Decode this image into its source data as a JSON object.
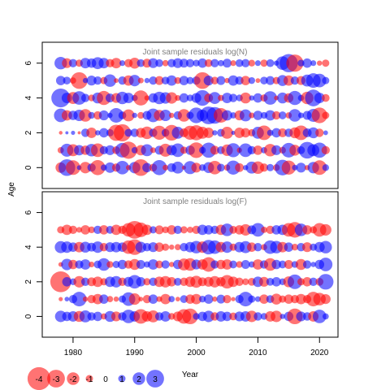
{
  "chart_data": {
    "type": "scatter",
    "description_kind": "bubble residual plot",
    "ylabel": "Age",
    "xlabel": "Year",
    "x_ticks": [
      "1980",
      "1990",
      "2000",
      "2010",
      "2020"
    ],
    "y_ticks": [
      "0",
      "2",
      "4",
      "6"
    ],
    "xlim": [
      1975,
      2023
    ],
    "ylim": [
      -1.2,
      7.2
    ],
    "years": [
      1978,
      1979,
      1980,
      1981,
      1982,
      1983,
      1984,
      1985,
      1986,
      1987,
      1988,
      1989,
      1990,
      1991,
      1992,
      1993,
      1994,
      1995,
      1996,
      1997,
      1998,
      1999,
      2000,
      2001,
      2002,
      2003,
      2004,
      2005,
      2006,
      2007,
      2008,
      2009,
      2010,
      2011,
      2012,
      2013,
      2014,
      2015,
      2016,
      2017,
      2018,
      2019,
      2020,
      2021
    ],
    "ages": [
      0,
      1,
      2,
      3,
      4,
      5,
      6
    ],
    "colors": {
      "negative": "#ff0000",
      "positive": "#0000ff"
    },
    "panels": [
      {
        "title": "Joint sample residuals log(N)",
        "residuals": [
          [
            -1.6,
            2.8,
            -2.4,
            0.5,
            -1.8,
            1.2,
            -2.5,
            0.8,
            1.6,
            -1.2,
            2.2,
            -0.6,
            1.8,
            -2.8,
            1.4,
            -1.1,
            2.5,
            -0.7,
            1.3,
            1.9,
            -0.4,
            2.1,
            -1.5,
            0.9,
            1.7,
            -2.2,
            1.1,
            -0.8,
            2.3,
            -1.3,
            0.6,
            1.9,
            -2.0,
            -1.2,
            1.0,
            -0.9,
            2.6,
            -2.3,
            0.7,
            1.5,
            -0.6,
            1.8,
            -2.4,
            0.9
          ],
          [
            -0.8,
            2.1,
            -1.9,
            1.6,
            -1.4,
            2.0,
            -2.2,
            1.2,
            1.5,
            -1.1,
            2.4,
            -2.9,
            0.8,
            -1.6,
            1.9,
            -0.7,
            1.3,
            -2.1,
            1.6,
            2.2,
            -1.0,
            1.4,
            -2.6,
            0.9,
            2.5,
            -1.3,
            1.1,
            -1.8,
            2.3,
            -0.6,
            2.2,
            1.2,
            -1.4,
            0.8,
            -2.0,
            1.5,
            -0.9,
            2.4,
            -1.7,
            1.1,
            2.8,
            1.9,
            2.5,
            -1.2
          ],
          [
            -0.3,
            0.2,
            0.4,
            -0.2,
            1.2,
            -1.6,
            0.6,
            1.4,
            1.0,
            -2.7,
            -2.9,
            1.1,
            1.2,
            -1.5,
            -2.0,
            1.2,
            -2.3,
            1.1,
            -2.6,
            1.9,
            -1.3,
            -2.3,
            -2.5,
            -1.9,
            -1.6,
            0.6,
            1.1,
            -1.9,
            0.4,
            -1.6,
            -1.4,
            -1.0,
            1.9,
            -2.4,
            0.8,
            1.4,
            -1.3,
            1.2,
            -1.7,
            -2.4,
            1.3,
            1.7,
            -1.2,
            0.5
          ],
          [
            2.2,
            -1.6,
            1.4,
            1.8,
            -2.0,
            0.9,
            -1.2,
            1.5,
            0.6,
            2.4,
            1.1,
            -1.9,
            0.6,
            -0.9,
            1.3,
            2.2,
            -1.7,
            1.8,
            -0.6,
            1.2,
            -2.0,
            1.0,
            2.6,
            1.8,
            3.0,
            2.8,
            -2.4,
            1.6,
            0.8,
            -1.5,
            1.9,
            -0.7,
            1.4,
            0.9,
            1.6,
            -1.2,
            1.1,
            -0.8,
            2.0,
            0.7,
            1.3,
            2.1,
            -2.6,
            -1.0
          ],
          [
            3.2,
            1.6,
            -1.9,
            2.2,
            1.2,
            -0.9,
            1.7,
            -2.3,
            1.3,
            -1.5,
            2.0,
            1.6,
            0.8,
            -2.5,
            -0.6,
            1.4,
            2.0,
            1.8,
            -1.8,
            -0.7,
            1.4,
            0.9,
            1.5,
            2.6,
            -1.3,
            1.9,
            -0.8,
            1.6,
            1.2,
            0.9,
            -1.7,
            0.6,
            1.4,
            -1.0,
            2.2,
            -0.5,
            1.7,
            -1.4,
            2.3,
            0.8,
            -2.0,
            2.8,
            1.6,
            -1.1
          ],
          [
            1.4,
            1.1,
            -0.8,
            -2.8,
            0.6,
            1.5,
            1.2,
            -1.0,
            2.0,
            -0.5,
            1.2,
            -1.6,
            1.8,
            -0.7,
            0.6,
            1.2,
            -1.3,
            1.1,
            1.6,
            -0.9,
            1.4,
            1.0,
            1.2,
            -2.8,
            1.5,
            -1.1,
            1.3,
            -0.6,
            1.6,
            1.2,
            -1.4,
            0.9,
            -0.5,
            1.1,
            1.3,
            -1.0,
            1.7,
            -1.6,
            1.2,
            -1.3,
            1.9,
            2.4,
            2.2,
            1.0
          ],
          [
            2.0,
            -1.5,
            1.2,
            -1.0,
            1.6,
            1.4,
            1.9,
            1.6,
            -1.2,
            -1.6,
            0.7,
            -1.2,
            -1.7,
            1.1,
            -1.3,
            1.5,
            1.1,
            -0.8,
            1.2,
            1.5,
            1.3,
            1.2,
            0.9,
            1.4,
            -1.1,
            1.2,
            0.8,
            1.3,
            -0.7,
            1.1,
            1.2,
            -0.9,
            0.7,
            -1.0,
            1.1,
            0.6,
            2.2,
            3.1,
            -2.9,
            0.9,
            1.4,
            0.7,
            -0.6,
            -1.0
          ]
        ]
      },
      {
        "title": "Joint sample residuals log(F)",
        "residuals": [
          [
            1.8,
            1.4,
            1.6,
            -1.7,
            1.9,
            1.2,
            1.4,
            -0.8,
            1.7,
            -1.5,
            1.2,
            2.2,
            1.6,
            -2.4,
            -1.6,
            -1.9,
            1.2,
            1.6,
            -0.9,
            -1.5,
            -2.4,
            -2.6,
            0.9,
            1.4,
            1.8,
            -1.2,
            1.6,
            1.4,
            -1.1,
            1.5,
            1.6,
            -1.8,
            1.2,
            0.9,
            -1.6,
            -1.8,
            0.6,
            1.4,
            -2.6,
            1.5,
            1.2,
            -1.6,
            2.2,
            0.8
          ],
          [
            -0.4,
            0.5,
            1.2,
            2.4,
            -0.6,
            -1.2,
            -1.6,
            1.4,
            -0.8,
            -0.6,
            1.0,
            2.2,
            -1.8,
            -0.5,
            -1.2,
            1.4,
            -0.7,
            -1.6,
            0.8,
            -0.5,
            1.1,
            -1.4,
            -1.6,
            0.9,
            1.4,
            -0.6,
            1.3,
            -1.2,
            -0.4,
            1.2,
            2.4,
            1.0,
            0.7,
            -1.4,
            1.1,
            -1.7,
            -1.0,
            -1.4,
            -1.2,
            -1.6,
            -1.2,
            -2.4,
            -2.0,
            -1.5
          ],
          [
            -3.6,
            1.4,
            0.9,
            -1.8,
            1.2,
            -1.3,
            -1.6,
            -1.0,
            1.6,
            1.8,
            -1.2,
            1.5,
            2.2,
            1.4,
            -1.0,
            1.2,
            -1.6,
            -1.8,
            -1.4,
            1.1,
            -1.2,
            -1.6,
            -1.9,
            -1.3,
            -1.5,
            -1.8,
            -1.4,
            -2.2,
            -1.6,
            -1.2,
            -0.9,
            -1.1,
            1.6,
            -1.5,
            1.1,
            1.4,
            0.9,
            -1.7,
            2.4,
            -1.0,
            -1.4,
            1.2,
            -1.1,
            2.6
          ],
          [
            -0.5,
            1.8,
            -1.4,
            1.2,
            1.6,
            -0.7,
            1.1,
            2.0,
            -0.9,
            1.0,
            1.4,
            -1.2,
            -1.7,
            1.3,
            0.8,
            1.6,
            -1.1,
            1.2,
            -0.6,
            1.4,
            -1.9,
            -2.0,
            1.5,
            -1.6,
            -2.4,
            1.2,
            -1.4,
            -1.6,
            1.1,
            -0.9,
            1.3,
            0.8,
            -1.6,
            1.2,
            -2.0,
            1.4,
            1.1,
            -1.3,
            0.9,
            -1.7,
            1.2,
            0.6,
            1.4,
            2.2
          ],
          [
            1.9,
            1.8,
            1.4,
            -1.6,
            1.7,
            1.3,
            1.8,
            -1.2,
            1.5,
            1.6,
            1.4,
            -2.2,
            -2.6,
            1.7,
            1.2,
            1.5,
            -1.4,
            -1.0,
            -0.6,
            -0.8,
            1.2,
            1.6,
            2.0,
            -1.8,
            2.4,
            2.2,
            -1.6,
            1.8,
            -1.0,
            1.6,
            1.9,
            -1.4,
            1.2,
            -0.8,
            2.2,
            2.0,
            -1.6,
            1.4,
            -0.9,
            1.2,
            -1.5,
            1.0,
            1.6,
            2.0
          ],
          [
            -1.0,
            -1.6,
            -1.2,
            -0.7,
            -1.4,
            -0.9,
            1.2,
            -1.4,
            1.1,
            -1.6,
            -1.2,
            -2.2,
            -3.0,
            -2.4,
            -1.6,
            1.0,
            -1.3,
            -0.9,
            -1.4,
            1.2,
            -1.0,
            -0.8,
            -1.2,
            1.6,
            1.4,
            1.2,
            -1.6,
            2.0,
            -1.1,
            -1.4,
            -1.8,
            1.3,
            2.2,
            -0.8,
            -1.2,
            1.4,
            1.6,
            -2.2,
            -2.6,
            2.0,
            -1.4,
            -1.0,
            -2.2,
            -1.8
          ]
        ]
      }
    ],
    "legend": {
      "placement": "bottom-left",
      "entries": [
        {
          "label": "-4",
          "value": -4
        },
        {
          "label": "-3",
          "value": -3
        },
        {
          "label": "-2",
          "value": -2
        },
        {
          "label": "-1",
          "value": -1
        },
        {
          "label": "0",
          "value": 0
        },
        {
          "label": "1",
          "value": 1
        },
        {
          "label": "2",
          "value": 2
        },
        {
          "label": "3",
          "value": 3
        }
      ]
    }
  }
}
